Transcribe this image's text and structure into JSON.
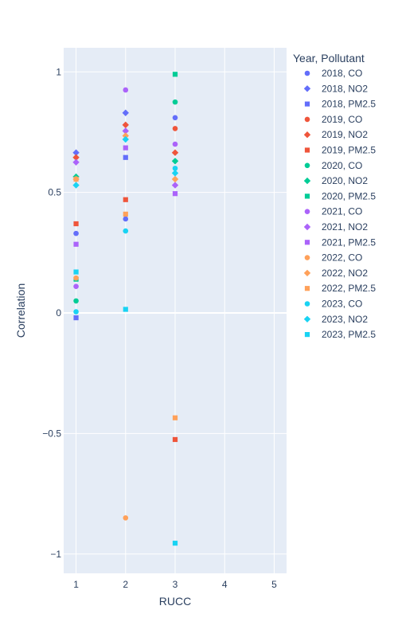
{
  "chart_data": {
    "type": "scatter",
    "xlabel": "RUCC",
    "ylabel": "Correlation",
    "xlim": [
      0.75,
      5.25
    ],
    "ylim": [
      -1.08,
      1.1
    ],
    "x_ticks": [
      1,
      2,
      3,
      4,
      5
    ],
    "y_ticks": [
      -1,
      -0.5,
      0,
      0.5,
      1
    ],
    "y_tick_labels": [
      "−1",
      "−0.5",
      "0",
      "0.5",
      "1"
    ],
    "grid": true,
    "legend_title": "Year, Pollutant",
    "legend_position": "right",
    "colors": {
      "plot_bg": "#e5ecf6",
      "grid": "#ffffff",
      "axis_text": "#2a3f5f"
    },
    "series": [
      {
        "name": "2018, CO",
        "symbol": "circle",
        "color": "#636efa",
        "x": [
          1,
          2,
          3
        ],
        "y": [
          0.33,
          0.39,
          0.81
        ]
      },
      {
        "name": "2018, NO2",
        "symbol": "diamond",
        "color": "#636efa",
        "x": [
          1,
          2
        ],
        "y": [
          0.665,
          0.83
        ]
      },
      {
        "name": "2018, PM2.5",
        "symbol": "square",
        "color": "#636efa",
        "x": [
          1,
          2
        ],
        "y": [
          -0.02,
          0.645
        ]
      },
      {
        "name": "2019, CO",
        "symbol": "circle",
        "color": "#ef553b",
        "x": [
          3
        ],
        "y": [
          0.765
        ]
      },
      {
        "name": "2019, NO2",
        "symbol": "diamond",
        "color": "#ef553b",
        "x": [
          1,
          2,
          3
        ],
        "y": [
          0.645,
          0.78,
          0.665
        ]
      },
      {
        "name": "2019, PM2.5",
        "symbol": "square",
        "color": "#ef553b",
        "x": [
          1,
          2,
          3
        ],
        "y": [
          0.37,
          0.47,
          -0.525
        ]
      },
      {
        "name": "2020, CO",
        "symbol": "circle",
        "color": "#00cc96",
        "x": [
          1,
          3
        ],
        "y": [
          0.05,
          0.875
        ]
      },
      {
        "name": "2020, NO2",
        "symbol": "diamond",
        "color": "#00cc96",
        "x": [
          1,
          3
        ],
        "y": [
          0.565,
          0.63
        ]
      },
      {
        "name": "2020, PM2.5",
        "symbol": "square",
        "color": "#00cc96",
        "x": [
          1,
          3
        ],
        "y": [
          0.14,
          0.99
        ]
      },
      {
        "name": "2021, CO",
        "symbol": "circle",
        "color": "#ab63fa",
        "x": [
          1,
          2,
          3
        ],
        "y": [
          0.11,
          0.925,
          0.7
        ]
      },
      {
        "name": "2021, NO2",
        "symbol": "diamond",
        "color": "#ab63fa",
        "x": [
          1,
          2,
          3
        ],
        "y": [
          0.625,
          0.755,
          0.53
        ]
      },
      {
        "name": "2021, PM2.5",
        "symbol": "square",
        "color": "#ab63fa",
        "x": [
          1,
          2,
          3
        ],
        "y": [
          0.285,
          0.685,
          0.495
        ]
      },
      {
        "name": "2022, CO",
        "symbol": "circle",
        "color": "#ffa15a",
        "x": [
          1,
          2
        ],
        "y": [
          0.145,
          -0.85
        ]
      },
      {
        "name": "2022, NO2",
        "symbol": "diamond",
        "color": "#ffa15a",
        "x": [
          1,
          2,
          3
        ],
        "y": [
          0.555,
          0.735,
          0.555
        ]
      },
      {
        "name": "2022, PM2.5",
        "symbol": "square",
        "color": "#ffa15a",
        "x": [
          1,
          2,
          3
        ],
        "y": [
          0.555,
          0.41,
          -0.435
        ]
      },
      {
        "name": "2023, CO",
        "symbol": "circle",
        "color": "#19d3f3",
        "x": [
          1,
          2,
          3
        ],
        "y": [
          0.005,
          0.34,
          0.6
        ]
      },
      {
        "name": "2023, NO2",
        "symbol": "diamond",
        "color": "#19d3f3",
        "x": [
          1,
          2,
          3
        ],
        "y": [
          0.53,
          0.72,
          0.58
        ]
      },
      {
        "name": "2023, PM2.5",
        "symbol": "square",
        "color": "#19d3f3",
        "x": [
          1,
          2,
          3
        ],
        "y": [
          0.17,
          0.015,
          -0.955
        ]
      }
    ]
  }
}
